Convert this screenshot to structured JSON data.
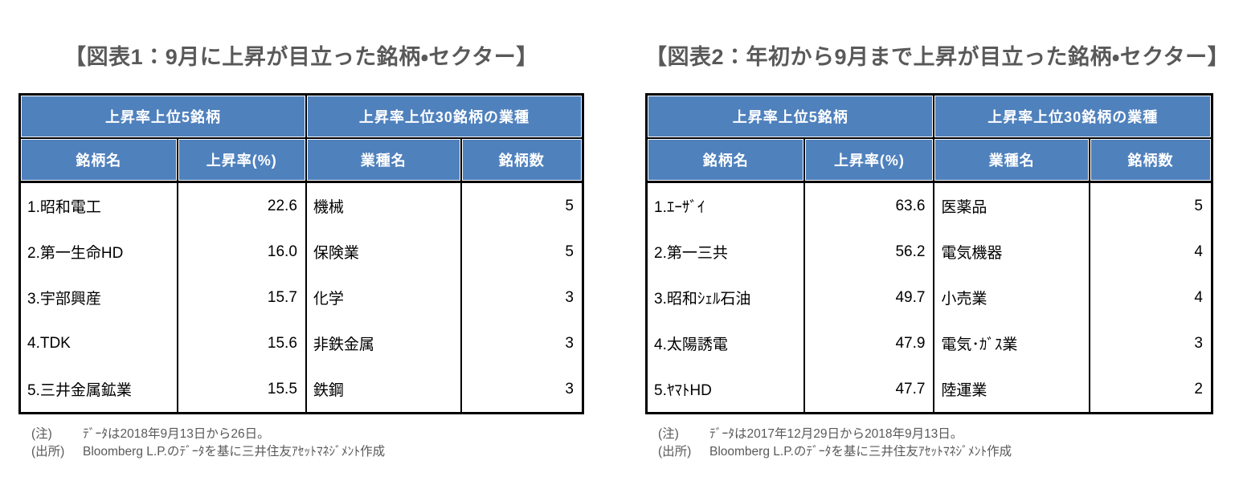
{
  "colors": {
    "header_bg": "#4f81bd",
    "header_text": "#ffffff",
    "grid_line": "#000000",
    "title_text": "#595959",
    "note_text": "#595959",
    "body_text": "#000000"
  },
  "chart_data": [
    {
      "type": "table",
      "title": "【図表1：9月に上昇が目立った銘柄・セクター】",
      "group_headers": [
        "上昇率上位5銘柄",
        "上昇率上位30銘柄の業種"
      ],
      "columns": [
        "銘柄名",
        "上昇率(%)",
        "業種名",
        "銘柄数"
      ],
      "rows": [
        [
          "1.昭和電工",
          "22.6",
          "機械",
          "5"
        ],
        [
          "2.第一生命HD",
          "16.0",
          "保険業",
          "5"
        ],
        [
          "3.宇部興産",
          "15.7",
          "化学",
          "3"
        ],
        [
          "4.TDK",
          "15.6",
          "非鉄金属",
          "3"
        ],
        [
          "5.三井金属鉱業",
          "15.5",
          "鉄鋼",
          "3"
        ]
      ],
      "notes": [
        {
          "label": "(注)",
          "text": "ﾃﾞｰﾀは2018年9月13日から26日。"
        },
        {
          "label": "(出所)",
          "text": "Bloomberg L.P.のﾃﾞｰﾀを基に三井住友ｱｾｯﾄﾏﾈｼﾞﾒﾝﾄ作成"
        }
      ]
    },
    {
      "type": "table",
      "title": "【図表2：年初から9月まで上昇が目立った銘柄・セクター】",
      "group_headers": [
        "上昇率上位5銘柄",
        "上昇率上位30銘柄の業種"
      ],
      "columns": [
        "銘柄名",
        "上昇率(%)",
        "業種名",
        "銘柄数"
      ],
      "rows": [
        [
          "1.ｴｰｻﾞｲ",
          "63.6",
          "医薬品",
          "5"
        ],
        [
          "2.第一三共",
          "56.2",
          "電気機器",
          "4"
        ],
        [
          "3.昭和ｼｪﾙ石油",
          "49.7",
          "小売業",
          "4"
        ],
        [
          "4.太陽誘電",
          "47.9",
          "電気･ｶﾞｽ業",
          "3"
        ],
        [
          "5.ﾔﾏﾄHD",
          "47.7",
          "陸運業",
          "2"
        ]
      ],
      "notes": [
        {
          "label": "(注)",
          "text": "ﾃﾞｰﾀは2017年12月29日から2018年9月13日。"
        },
        {
          "label": "(出所)",
          "text": "Bloomberg L.P.のﾃﾞｰﾀを基に三井住友ｱｾｯﾄﾏﾈｼﾞﾒﾝﾄ作成"
        }
      ]
    }
  ]
}
